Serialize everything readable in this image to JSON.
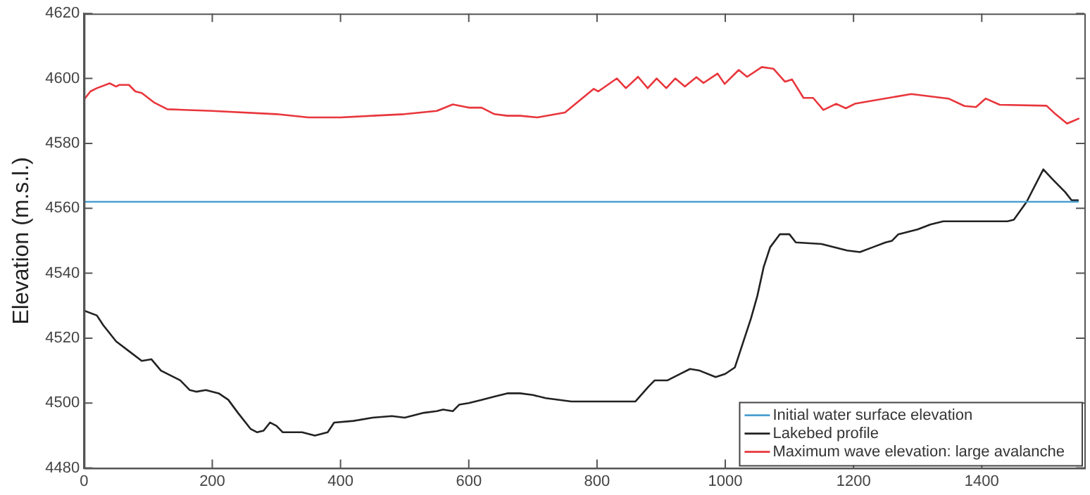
{
  "chart_data": {
    "type": "line",
    "ylabel": "Elevation (m.s.l.)",
    "xlim": [
      0,
      1560
    ],
    "xticks": [
      0,
      200,
      400,
      600,
      800,
      1000,
      1200,
      1400
    ],
    "ylim": [
      4480,
      4620
    ],
    "yticks": [
      4480,
      4500,
      4520,
      4540,
      4560,
      4580,
      4600,
      4620
    ],
    "grid": false,
    "legend": "bottom right",
    "marker": "none",
    "line_style": "solid",
    "series": [
      {
        "name": "Initial water surface elevation",
        "color": "#4a9fd0",
        "x": [
          0,
          1550
        ],
        "values": [
          4562,
          4562
        ]
      },
      {
        "name": "Lakebed profile",
        "color": "#222222",
        "x": [
          0,
          20,
          30,
          50,
          70,
          90,
          105,
          120,
          150,
          165,
          175,
          190,
          210,
          225,
          240,
          260,
          270,
          280,
          290,
          300,
          310,
          340,
          360,
          380,
          390,
          420,
          450,
          480,
          500,
          530,
          550,
          560,
          575,
          585,
          600,
          620,
          640,
          660,
          680,
          700,
          720,
          760,
          800,
          850,
          860,
          880,
          890,
          910,
          930,
          945,
          960,
          985,
          1000,
          1015,
          1030,
          1040,
          1050,
          1060,
          1070,
          1085,
          1100,
          1110,
          1150,
          1190,
          1210,
          1230,
          1250,
          1260,
          1270,
          1300,
          1320,
          1340,
          1380,
          1440,
          1450,
          1470,
          1496,
          1510,
          1530,
          1540,
          1550
        ],
        "values": [
          4528.5,
          4527,
          4524,
          4519,
          4516,
          4513,
          4513.5,
          4510,
          4507,
          4504,
          4503.5,
          4504,
          4503,
          4501,
          4497,
          4492,
          4491,
          4491.5,
          4494,
          4493,
          4491,
          4491,
          4490,
          4491,
          4494,
          4494.5,
          4495.5,
          4496,
          4495.5,
          4497,
          4497.5,
          4498,
          4497.5,
          4499.5,
          4500,
          4501,
          4502,
          4503,
          4503,
          4502.5,
          4501.5,
          4500.5,
          4500.5,
          4500.5,
          4500.5,
          4505,
          4507,
          4507,
          4509,
          4510.5,
          4510,
          4508,
          4509,
          4511,
          4520,
          4526,
          4533,
          4542,
          4548,
          4552,
          4552,
          4549.5,
          4549,
          4547,
          4546.5,
          4548,
          4549.5,
          4550,
          4552,
          4553.5,
          4555,
          4556,
          4556,
          4556,
          4556.5,
          4562,
          4572,
          4569,
          4565,
          4562.5,
          4562.5
        ]
      },
      {
        "name": "Maximum wave elevation: large avalanche",
        "color": "#e8363c",
        "x": [
          0,
          10,
          20,
          40,
          50,
          55,
          70,
          80,
          90,
          100,
          110,
          130,
          200,
          300,
          350,
          400,
          450,
          500,
          550,
          575,
          600,
          620,
          640,
          660,
          680,
          707,
          750,
          795,
          802,
          831,
          845,
          864,
          879,
          893,
          908,
          922,
          937,
          955,
          966,
          988,
          999,
          1021,
          1034,
          1057,
          1075,
          1093,
          1104,
          1122,
          1137,
          1153,
          1173,
          1188,
          1202,
          1290,
          1348,
          1373,
          1391,
          1406,
          1428,
          1501,
          1515,
          1533,
          1551
        ],
        "values": [
          4593.5,
          4596,
          4597,
          4598.5,
          4597.5,
          4598,
          4598,
          4596,
          4595.5,
          4594,
          4592.5,
          4590.5,
          4590,
          4589,
          4588,
          4588,
          4588.5,
          4589,
          4590,
          4592,
          4591,
          4591,
          4589,
          4588.5,
          4588.5,
          4588,
          4589.5,
          4596.8,
          4596,
          4600,
          4597,
          4600.5,
          4597,
          4600,
          4597,
          4600,
          4597.5,
          4600.4,
          4598.6,
          4601.5,
          4598.3,
          4602.6,
          4600.5,
          4603.5,
          4603,
          4599,
          4599.7,
          4594,
          4594,
          4590.3,
          4592.2,
          4590.8,
          4592.2,
          4595.2,
          4593.8,
          4591.5,
          4591.2,
          4593.8,
          4591.9,
          4591.6,
          4589,
          4586.1,
          4587.6
        ]
      }
    ]
  }
}
